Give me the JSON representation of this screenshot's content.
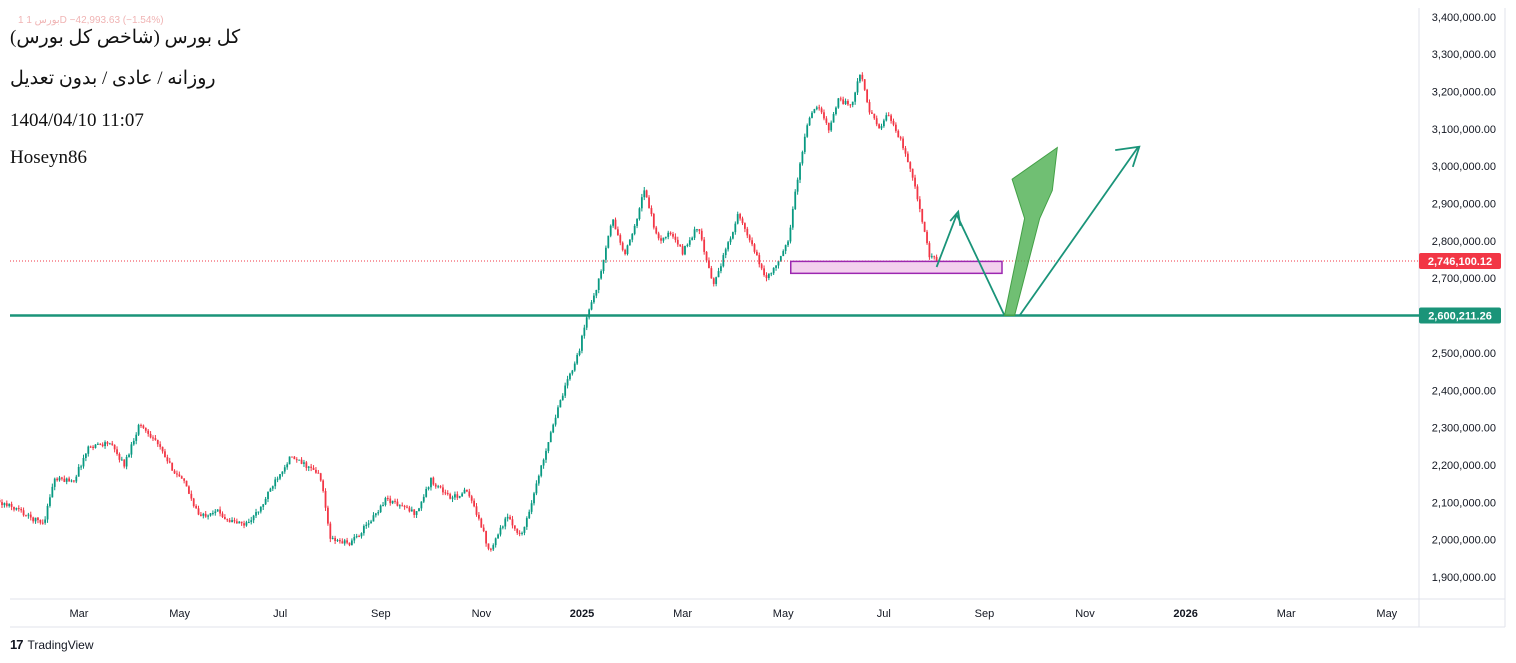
{
  "header": {
    "faded_text": "1 بورس 1D  −42,993.63 (−1.54%)",
    "title": "کل بورس (شاخص کل بورس)",
    "subtitle": "روزانه / عادی / بدون تعدیل",
    "datetime": "1404/04/10 11:07",
    "author": "Hoseyn86"
  },
  "brand": {
    "mark": "17",
    "name": "TradingView"
  },
  "colors": {
    "up": "#089981",
    "down": "#f23645",
    "level": "#1a9479",
    "current": "#f23645",
    "zone_fill": "#f3d0ee",
    "zone_stroke": "#9c27b0",
    "big_arrow": "#4caf50"
  },
  "chart_data": {
    "type": "candlestick",
    "title": "کل بورس (شاخص کل بورس)",
    "ylim": [
      1850000,
      3420000
    ],
    "y_ticks": [
      "3,400,000.00",
      "3,300,000.00",
      "3,200,000.00",
      "3,100,000.00",
      "3,000,000.00",
      "2,900,000.00",
      "2,800,000.00",
      "2,700,000.00",
      "2,600,000.00",
      "2,500,000.00",
      "2,400,000.00",
      "2,300,000.00",
      "2,200,000.00",
      "2,100,000.00",
      "2,000,000.00",
      "1,900,000.00"
    ],
    "x_ticks": [
      {
        "label": "Mar",
        "t": 2.0,
        "bold": false
      },
      {
        "label": "May",
        "t": 4.0,
        "bold": false
      },
      {
        "label": "Jul",
        "t": 6.0,
        "bold": false
      },
      {
        "label": "Sep",
        "t": 8.0,
        "bold": false
      },
      {
        "label": "Nov",
        "t": 10.0,
        "bold": false
      },
      {
        "label": "2025",
        "t": 12.0,
        "bold": true
      },
      {
        "label": "Mar",
        "t": 14.0,
        "bold": false
      },
      {
        "label": "May",
        "t": 16.0,
        "bold": false
      },
      {
        "label": "Jul",
        "t": 18.0,
        "bold": false
      },
      {
        "label": "Sep",
        "t": 20.0,
        "bold": false
      },
      {
        "label": "Nov",
        "t": 22.0,
        "bold": false
      },
      {
        "label": "2026",
        "t": 24.0,
        "bold": true
      },
      {
        "label": "Mar",
        "t": 26.0,
        "bold": false
      },
      {
        "label": "May",
        "t": 28.0,
        "bold": false
      }
    ],
    "current_price": {
      "value": 2746100.12,
      "label": "2,746,100.12"
    },
    "support_level": {
      "value": 2600211.26,
      "label": "2,600,211.26"
    },
    "price_path": [
      [
        -0.15,
        2160000
      ],
      [
        0.05,
        2120000
      ],
      [
        0.4,
        2100000
      ],
      [
        0.8,
        2080000
      ],
      [
        1.0,
        2060000
      ],
      [
        1.3,
        2045000
      ],
      [
        1.5,
        2160000
      ],
      [
        1.9,
        2160000
      ],
      [
        2.2,
        2250000
      ],
      [
        2.6,
        2260000
      ],
      [
        2.9,
        2200000
      ],
      [
        3.2,
        2310000
      ],
      [
        3.5,
        2270000
      ],
      [
        3.8,
        2200000
      ],
      [
        4.1,
        2150000
      ],
      [
        4.4,
        2060000
      ],
      [
        4.7,
        2080000
      ],
      [
        5.0,
        2050000
      ],
      [
        5.3,
        2040000
      ],
      [
        5.6,
        2080000
      ],
      [
        5.9,
        2160000
      ],
      [
        6.2,
        2220000
      ],
      [
        6.5,
        2200000
      ],
      [
        6.8,
        2170000
      ],
      [
        7.0,
        2000000
      ],
      [
        7.4,
        1990000
      ],
      [
        7.8,
        2050000
      ],
      [
        8.1,
        2110000
      ],
      [
        8.4,
        2090000
      ],
      [
        8.7,
        2070000
      ],
      [
        9.0,
        2160000
      ],
      [
        9.4,
        2110000
      ],
      [
        9.7,
        2130000
      ],
      [
        9.95,
        2060000
      ],
      [
        10.15,
        1970000
      ],
      [
        10.5,
        2060000
      ],
      [
        10.8,
        2010000
      ],
      [
        11.1,
        2150000
      ],
      [
        11.4,
        2300000
      ],
      [
        11.7,
        2420000
      ],
      [
        11.95,
        2510000
      ],
      [
        12.1,
        2600000
      ],
      [
        12.35,
        2700000
      ],
      [
        12.6,
        2860000
      ],
      [
        12.85,
        2760000
      ],
      [
        13.0,
        2820000
      ],
      [
        13.25,
        2940000
      ],
      [
        13.5,
        2800000
      ],
      [
        13.75,
        2820000
      ],
      [
        14.0,
        2770000
      ],
      [
        14.3,
        2840000
      ],
      [
        14.6,
        2680000
      ],
      [
        14.85,
        2770000
      ],
      [
        15.1,
        2870000
      ],
      [
        15.4,
        2780000
      ],
      [
        15.65,
        2700000
      ],
      [
        15.9,
        2740000
      ],
      [
        16.1,
        2800000
      ],
      [
        16.25,
        2940000
      ],
      [
        16.5,
        3130000
      ],
      [
        16.7,
        3160000
      ],
      [
        16.9,
        3100000
      ],
      [
        17.1,
        3180000
      ],
      [
        17.35,
        3160000
      ],
      [
        17.55,
        3255000
      ],
      [
        17.7,
        3150000
      ],
      [
        17.9,
        3100000
      ],
      [
        18.1,
        3140000
      ],
      [
        18.3,
        3080000
      ],
      [
        18.55,
        2990000
      ],
      [
        18.75,
        2860000
      ],
      [
        18.9,
        2760000
      ],
      [
        19.05,
        2746100
      ]
    ],
    "annotations": {
      "small_arrow_path": [
        [
          19.05,
          2730000
        ],
        [
          19.45,
          2870000
        ],
        [
          20.4,
          2600000
        ]
      ],
      "small_arrow_head": [
        [
          19.32,
          2853000
        ],
        [
          19.48,
          2878000
        ],
        [
          19.52,
          2840000
        ]
      ],
      "zone": {
        "t0": 16.15,
        "t1": 20.35,
        "v0": 2713000,
        "v1": 2745000
      },
      "thin_arrow": [
        [
          20.7,
          2600000
        ],
        [
          23.05,
          3050000
        ]
      ],
      "thin_arrow_head": [
        [
          22.6,
          3043000
        ],
        [
          23.08,
          3052000
        ],
        [
          22.95,
          2998000
        ]
      ],
      "big_arrow": [
        [
          20.4,
          2600000
        ],
        [
          20.8,
          2860000
        ],
        [
          20.55,
          2965000
        ],
        [
          21.45,
          3050000
        ],
        [
          21.35,
          2935000
        ],
        [
          21.1,
          2860000
        ],
        [
          20.6,
          2600000
        ]
      ]
    }
  }
}
